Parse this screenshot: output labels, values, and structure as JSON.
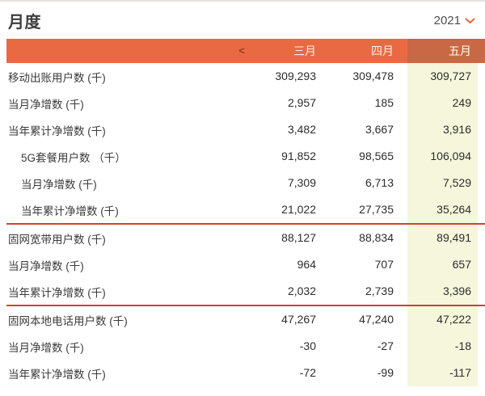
{
  "header": {
    "title": "月度",
    "year": "2021",
    "year_chevron_icon": "chevron-down"
  },
  "table": {
    "nav_prev_label": "<",
    "columns": [
      "三月",
      "四月",
      "五月"
    ],
    "selected_column": "五月",
    "sections": [
      {
        "rows": [
          {
            "label": "移动出账用户数 (千)",
            "indent": false,
            "values": [
              "309,293",
              "309,478",
              "309,727"
            ]
          },
          {
            "label": "当月净增数 (千)",
            "indent": false,
            "values": [
              "2,957",
              "185",
              "249"
            ]
          },
          {
            "label": "当年累计净增数 (千)",
            "indent": false,
            "values": [
              "3,482",
              "3,667",
              "3,916"
            ]
          },
          {
            "label": "5G套餐用户数 （千）",
            "indent": true,
            "values": [
              "91,852",
              "98,565",
              "106,094"
            ]
          },
          {
            "label": "当月净增数 (千)",
            "indent": true,
            "values": [
              "7,309",
              "6,713",
              "7,529"
            ]
          },
          {
            "label": "当年累计净增数 (千)",
            "indent": true,
            "values": [
              "21,022",
              "27,735",
              "35,264"
            ]
          }
        ]
      },
      {
        "rows": [
          {
            "label": "固网宽带用户数 (千)",
            "indent": false,
            "values": [
              "88,127",
              "88,834",
              "89,491"
            ]
          },
          {
            "label": "当月净增数 (千)",
            "indent": false,
            "values": [
              "964",
              "707",
              "657"
            ]
          },
          {
            "label": "当年累计净增数 (千)",
            "indent": false,
            "values": [
              "2,032",
              "2,739",
              "3,396"
            ]
          }
        ]
      },
      {
        "rows": [
          {
            "label": "固网本地电话用户数 (千)",
            "indent": false,
            "values": [
              "47,267",
              "47,240",
              "47,222"
            ]
          },
          {
            "label": "当月净增数 (千)",
            "indent": false,
            "values": [
              "-30",
              "-27",
              "-18"
            ]
          },
          {
            "label": "当年累计净增数 (千)",
            "indent": false,
            "values": [
              "-72",
              "-99",
              "-117"
            ]
          }
        ]
      }
    ]
  },
  "colors": {
    "header_orange": "#e96a42",
    "selected_column_orange": "#c96844",
    "highlight_yellow": "#f5f6db",
    "divider_red": "#cc452e",
    "accent_orange": "#e8673f"
  }
}
